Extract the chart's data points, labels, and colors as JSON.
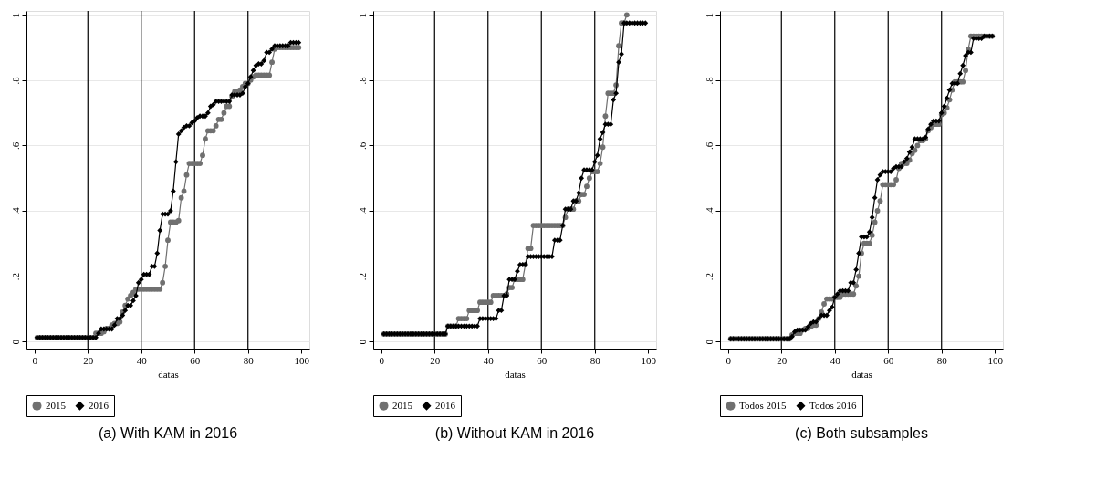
{
  "chart_data": [
    {
      "type": "line",
      "title": "(a) With KAM in 2016",
      "xlabel": "datas",
      "x": [
        1,
        2,
        3,
        4,
        5,
        6,
        7,
        8,
        9,
        10,
        11,
        12,
        13,
        14,
        15,
        16,
        17,
        18,
        19,
        20,
        21,
        22,
        23,
        24,
        25,
        26,
        27,
        28,
        29,
        30,
        31,
        32,
        33,
        34,
        35,
        36,
        37,
        38,
        39,
        40,
        41,
        42,
        43,
        44,
        45,
        46,
        47,
        48,
        49,
        50,
        51,
        52,
        53,
        54,
        55,
        56,
        57,
        58,
        59,
        60,
        61,
        62,
        63,
        64,
        65,
        66,
        67,
        68,
        69,
        70,
        71,
        72,
        73,
        74,
        75,
        76,
        77,
        78,
        79,
        80,
        81,
        82,
        83,
        84,
        85,
        86,
        87,
        88,
        89,
        90,
        91,
        92,
        93,
        94,
        95,
        96,
        97,
        98,
        99
      ],
      "series": [
        {
          "name": "2015",
          "color": "#707070",
          "marker": "circle",
          "values": [
            0.012,
            0.012,
            0.012,
            0.012,
            0.012,
            0.012,
            0.012,
            0.012,
            0.012,
            0.012,
            0.012,
            0.012,
            0.012,
            0.012,
            0.012,
            0.012,
            0.012,
            0.012,
            0.012,
            0.012,
            0.012,
            0.012,
            0.025,
            0.025,
            0.025,
            0.03,
            0.04,
            0.04,
            0.05,
            0.055,
            0.055,
            0.06,
            0.09,
            0.11,
            0.13,
            0.14,
            0.15,
            0.16,
            0.16,
            0.16,
            0.16,
            0.16,
            0.16,
            0.16,
            0.16,
            0.16,
            0.16,
            0.18,
            0.23,
            0.31,
            0.365,
            0.365,
            0.365,
            0.37,
            0.44,
            0.46,
            0.51,
            0.545,
            0.545,
            0.545,
            0.545,
            0.545,
            0.57,
            0.62,
            0.645,
            0.645,
            0.645,
            0.66,
            0.68,
            0.68,
            0.7,
            0.72,
            0.72,
            0.75,
            0.765,
            0.765,
            0.77,
            0.78,
            0.79,
            0.79,
            0.8,
            0.81,
            0.815,
            0.815,
            0.815,
            0.815,
            0.815,
            0.815,
            0.855,
            0.895,
            0.9,
            0.9,
            0.9,
            0.9,
            0.9,
            0.9,
            0.9,
            0.9,
            0.9
          ]
        },
        {
          "name": "2016",
          "color": "#000000",
          "marker": "diamond",
          "values": [
            0.012,
            0.012,
            0.012,
            0.012,
            0.012,
            0.012,
            0.012,
            0.012,
            0.012,
            0.012,
            0.012,
            0.012,
            0.012,
            0.012,
            0.012,
            0.012,
            0.012,
            0.012,
            0.012,
            0.012,
            0.012,
            0.012,
            0.012,
            0.025,
            0.038,
            0.038,
            0.038,
            0.038,
            0.038,
            0.05,
            0.07,
            0.07,
            0.08,
            0.095,
            0.11,
            0.11,
            0.125,
            0.14,
            0.18,
            0.19,
            0.205,
            0.205,
            0.205,
            0.23,
            0.23,
            0.27,
            0.34,
            0.39,
            0.39,
            0.39,
            0.4,
            0.46,
            0.55,
            0.635,
            0.645,
            0.655,
            0.66,
            0.66,
            0.67,
            0.675,
            0.685,
            0.69,
            0.69,
            0.69,
            0.7,
            0.72,
            0.725,
            0.735,
            0.735,
            0.735,
            0.735,
            0.735,
            0.735,
            0.755,
            0.755,
            0.755,
            0.755,
            0.76,
            0.78,
            0.79,
            0.81,
            0.83,
            0.845,
            0.85,
            0.85,
            0.86,
            0.885,
            0.885,
            0.895,
            0.905,
            0.905,
            0.905,
            0.905,
            0.905,
            0.905,
            0.915,
            0.915,
            0.915,
            0.915
          ]
        }
      ],
      "xlim": [
        -3,
        103
      ],
      "xticks": [
        0,
        20,
        40,
        60,
        80,
        100
      ],
      "ylim": [
        -0.022,
        1.012
      ],
      "yticks": [
        0,
        {
          "value": 0.2,
          "label": ".2"
        },
        {
          "value": 0.4,
          "label": ".4"
        },
        {
          "value": 0.6,
          "label": ".6"
        },
        {
          "value": 0.8,
          "label": ".8"
        },
        1
      ],
      "ref_lines": [
        {
          "axis": "x",
          "value": 20,
          "color": "#000000"
        },
        {
          "axis": "x",
          "value": 40,
          "color": "#000000"
        },
        {
          "axis": "x",
          "value": 60,
          "color": "#000000"
        },
        {
          "axis": "x",
          "value": 80,
          "color": "#000000"
        }
      ],
      "grid": "y",
      "legend": "bottom"
    },
    {
      "type": "line",
      "title": "(b) Without KAM in 2016",
      "xlabel": "datas",
      "x": [
        1,
        2,
        3,
        4,
        5,
        6,
        7,
        8,
        9,
        10,
        11,
        12,
        13,
        14,
        15,
        16,
        17,
        18,
        19,
        20,
        21,
        22,
        23,
        24,
        25,
        26,
        27,
        28,
        29,
        30,
        31,
        32,
        33,
        34,
        35,
        36,
        37,
        38,
        39,
        40,
        41,
        42,
        43,
        44,
        45,
        46,
        47,
        48,
        49,
        50,
        51,
        52,
        53,
        54,
        55,
        56,
        57,
        58,
        59,
        60,
        61,
        62,
        63,
        64,
        65,
        66,
        67,
        68,
        69,
        70,
        71,
        72,
        73,
        74,
        75,
        76,
        77,
        78,
        79,
        80,
        81,
        82,
        83,
        84,
        85,
        86,
        87,
        88,
        89,
        90,
        91,
        92,
        93,
        94,
        95,
        96,
        97,
        98,
        99
      ],
      "series": [
        {
          "name": "2015",
          "color": "#707070",
          "marker": "circle",
          "x": [
            1,
            2,
            3,
            4,
            5,
            6,
            7,
            8,
            9,
            10,
            11,
            12,
            13,
            14,
            15,
            16,
            17,
            18,
            19,
            20,
            21,
            22,
            23,
            24,
            25,
            26,
            27,
            28,
            29,
            30,
            31,
            32,
            33,
            34,
            35,
            36,
            37,
            38,
            39,
            40,
            41,
            42,
            43,
            44,
            45,
            46,
            47,
            48,
            49,
            50,
            51,
            52,
            53,
            54,
            55,
            56,
            57,
            58,
            59,
            60,
            61,
            62,
            63,
            64,
            65,
            66,
            67,
            68,
            69,
            70,
            71,
            72,
            73,
            74,
            75,
            76,
            77,
            78,
            79,
            80,
            81,
            82,
            83,
            84,
            85,
            86,
            87,
            88,
            89,
            90,
            91,
            92
          ],
          "values": [
            0.023,
            0.023,
            0.023,
            0.023,
            0.023,
            0.023,
            0.023,
            0.023,
            0.023,
            0.023,
            0.023,
            0.023,
            0.023,
            0.023,
            0.023,
            0.023,
            0.023,
            0.023,
            0.023,
            0.023,
            0.023,
            0.023,
            0.023,
            0.023,
            0.047,
            0.047,
            0.047,
            0.047,
            0.07,
            0.07,
            0.07,
            0.07,
            0.095,
            0.095,
            0.095,
            0.095,
            0.12,
            0.12,
            0.12,
            0.12,
            0.12,
            0.14,
            0.14,
            0.14,
            0.14,
            0.14,
            0.145,
            0.165,
            0.165,
            0.19,
            0.19,
            0.19,
            0.19,
            0.235,
            0.285,
            0.285,
            0.355,
            0.355,
            0.355,
            0.355,
            0.355,
            0.355,
            0.355,
            0.355,
            0.355,
            0.355,
            0.355,
            0.355,
            0.38,
            0.405,
            0.405,
            0.405,
            0.43,
            0.43,
            0.45,
            0.45,
            0.475,
            0.5,
            0.52,
            0.52,
            0.52,
            0.545,
            0.595,
            0.69,
            0.76,
            0.76,
            0.76,
            0.785,
            0.905,
            0.975,
            0.975,
            1.0
          ]
        },
        {
          "name": "2016",
          "color": "#000000",
          "marker": "diamond",
          "values": [
            0.023,
            0.023,
            0.023,
            0.023,
            0.023,
            0.023,
            0.023,
            0.023,
            0.023,
            0.023,
            0.023,
            0.023,
            0.023,
            0.023,
            0.023,
            0.023,
            0.023,
            0.023,
            0.023,
            0.023,
            0.023,
            0.023,
            0.023,
            0.023,
            0.047,
            0.047,
            0.047,
            0.047,
            0.047,
            0.047,
            0.047,
            0.047,
            0.047,
            0.047,
            0.047,
            0.047,
            0.07,
            0.07,
            0.07,
            0.07,
            0.07,
            0.07,
            0.07,
            0.095,
            0.095,
            0.14,
            0.14,
            0.19,
            0.19,
            0.19,
            0.215,
            0.235,
            0.235,
            0.235,
            0.26,
            0.26,
            0.26,
            0.26,
            0.26,
            0.26,
            0.26,
            0.26,
            0.26,
            0.26,
            0.31,
            0.31,
            0.31,
            0.355,
            0.405,
            0.405,
            0.405,
            0.43,
            0.43,
            0.455,
            0.5,
            0.525,
            0.525,
            0.525,
            0.525,
            0.55,
            0.57,
            0.62,
            0.64,
            0.665,
            0.665,
            0.665,
            0.74,
            0.76,
            0.855,
            0.88,
            0.975,
            0.975,
            0.975,
            0.975,
            0.975,
            0.975,
            0.975,
            0.975,
            0.975
          ]
        }
      ],
      "xlim": [
        -3,
        103
      ],
      "xticks": [
        0,
        20,
        40,
        60,
        80,
        100
      ],
      "ylim": [
        -0.022,
        1.012
      ],
      "yticks": [
        0,
        {
          "value": 0.2,
          "label": ".2"
        },
        {
          "value": 0.4,
          "label": ".4"
        },
        {
          "value": 0.6,
          "label": ".6"
        },
        {
          "value": 0.8,
          "label": ".8"
        },
        1
      ],
      "ref_lines": [
        {
          "axis": "x",
          "value": 20,
          "color": "#000000"
        },
        {
          "axis": "x",
          "value": 40,
          "color": "#000000"
        },
        {
          "axis": "x",
          "value": 60,
          "color": "#000000"
        },
        {
          "axis": "x",
          "value": 80,
          "color": "#000000"
        }
      ],
      "grid": "y",
      "legend": "bottom"
    },
    {
      "type": "line",
      "title": "(c) Both subsamples",
      "xlabel": "datas",
      "x": [
        1,
        2,
        3,
        4,
        5,
        6,
        7,
        8,
        9,
        10,
        11,
        12,
        13,
        14,
        15,
        16,
        17,
        18,
        19,
        20,
        21,
        22,
        23,
        24,
        25,
        26,
        27,
        28,
        29,
        30,
        31,
        32,
        33,
        34,
        35,
        36,
        37,
        38,
        39,
        40,
        41,
        42,
        43,
        44,
        45,
        46,
        47,
        48,
        49,
        50,
        51,
        52,
        53,
        54,
        55,
        56,
        57,
        58,
        59,
        60,
        61,
        62,
        63,
        64,
        65,
        66,
        67,
        68,
        69,
        70,
        71,
        72,
        73,
        74,
        75,
        76,
        77,
        78,
        79,
        80,
        81,
        82,
        83,
        84,
        85,
        86,
        87,
        88,
        89,
        90,
        91,
        92,
        93,
        94,
        95,
        96,
        97,
        98,
        99
      ],
      "series": [
        {
          "name": "Todos 2015",
          "color": "#707070",
          "marker": "circle",
          "values": [
            0.008,
            0.008,
            0.008,
            0.008,
            0.008,
            0.008,
            0.008,
            0.008,
            0.008,
            0.008,
            0.008,
            0.008,
            0.008,
            0.008,
            0.008,
            0.008,
            0.008,
            0.008,
            0.008,
            0.008,
            0.008,
            0.008,
            0.008,
            0.02,
            0.025,
            0.025,
            0.025,
            0.035,
            0.04,
            0.04,
            0.045,
            0.05,
            0.05,
            0.07,
            0.09,
            0.115,
            0.13,
            0.13,
            0.13,
            0.135,
            0.135,
            0.135,
            0.145,
            0.145,
            0.145,
            0.145,
            0.145,
            0.17,
            0.2,
            0.27,
            0.3,
            0.3,
            0.3,
            0.325,
            0.365,
            0.4,
            0.43,
            0.48,
            0.48,
            0.48,
            0.48,
            0.48,
            0.495,
            0.53,
            0.545,
            0.545,
            0.545,
            0.555,
            0.575,
            0.585,
            0.6,
            0.615,
            0.615,
            0.62,
            0.645,
            0.655,
            0.665,
            0.665,
            0.665,
            0.695,
            0.7,
            0.715,
            0.74,
            0.77,
            0.795,
            0.795,
            0.795,
            0.795,
            0.83,
            0.895,
            0.935,
            0.935,
            0.935,
            0.935,
            0.935,
            0.935,
            0.935,
            0.935,
            0.935
          ]
        },
        {
          "name": "Todos 2016",
          "color": "#000000",
          "marker": "diamond",
          "values": [
            0.008,
            0.008,
            0.008,
            0.008,
            0.008,
            0.008,
            0.008,
            0.008,
            0.008,
            0.008,
            0.008,
            0.008,
            0.008,
            0.008,
            0.008,
            0.008,
            0.008,
            0.008,
            0.008,
            0.008,
            0.008,
            0.008,
            0.008,
            0.015,
            0.03,
            0.035,
            0.035,
            0.035,
            0.035,
            0.045,
            0.055,
            0.06,
            0.06,
            0.07,
            0.08,
            0.08,
            0.08,
            0.095,
            0.105,
            0.135,
            0.145,
            0.155,
            0.155,
            0.155,
            0.155,
            0.18,
            0.18,
            0.22,
            0.27,
            0.32,
            0.32,
            0.32,
            0.335,
            0.38,
            0.44,
            0.495,
            0.51,
            0.52,
            0.52,
            0.52,
            0.52,
            0.53,
            0.535,
            0.535,
            0.535,
            0.55,
            0.56,
            0.58,
            0.595,
            0.62,
            0.62,
            0.62,
            0.62,
            0.625,
            0.65,
            0.665,
            0.675,
            0.675,
            0.675,
            0.7,
            0.72,
            0.745,
            0.77,
            0.79,
            0.79,
            0.79,
            0.82,
            0.845,
            0.875,
            0.885,
            0.885,
            0.928,
            0.928,
            0.928,
            0.928,
            0.935,
            0.935,
            0.935,
            0.935
          ]
        }
      ],
      "xlim": [
        -3,
        103
      ],
      "xticks": [
        0,
        20,
        40,
        60,
        80,
        100
      ],
      "ylim": [
        -0.022,
        1.012
      ],
      "yticks": [
        0,
        {
          "value": 0.2,
          "label": ".2"
        },
        {
          "value": 0.4,
          "label": ".4"
        },
        {
          "value": 0.6,
          "label": ".6"
        },
        {
          "value": 0.8,
          "label": ".8"
        },
        1
      ],
      "ref_lines": [
        {
          "axis": "x",
          "value": 20,
          "color": "#000000"
        },
        {
          "axis": "x",
          "value": 40,
          "color": "#000000"
        },
        {
          "axis": "x",
          "value": 60,
          "color": "#000000"
        },
        {
          "axis": "x",
          "value": 80,
          "color": "#000000"
        }
      ],
      "grid": "y",
      "legend": "bottom"
    }
  ]
}
